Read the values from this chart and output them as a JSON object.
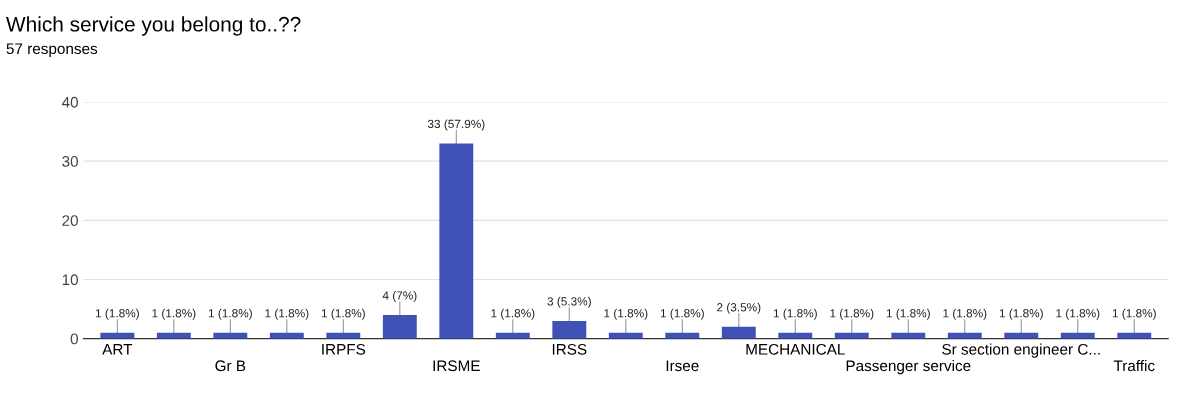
{
  "chart_data": {
    "type": "bar",
    "title": "Which service you belong to..??",
    "subtitle": "57 responses",
    "categories": [
      "ART",
      null,
      "Gr B",
      null,
      "IRPFS",
      null,
      "IRSME",
      null,
      "IRSS",
      null,
      "Irsee",
      null,
      "MECHANICAL",
      null,
      "Passenger service",
      null,
      "Sr section engineer C...",
      null,
      "Traffic"
    ],
    "values": [
      1,
      1,
      1,
      1,
      1,
      4,
      33,
      1,
      3,
      1,
      1,
      2,
      1,
      1,
      1,
      1,
      1,
      1,
      1
    ],
    "value_labels": [
      "1 (1.8%)",
      "1 (1.8%)",
      "1 (1.8%)",
      "1 (1.8%)",
      "1 (1.8%)",
      "4 (7%)",
      "33 (57.9%)",
      "1 (1.8%)",
      "3 (5.3%)",
      "1 (1.8%)",
      "1 (1.8%)",
      "2 (3.5%)",
      "1 (1.8%)",
      "1 (1.8%)",
      "1 (1.8%)",
      "1 (1.8%)",
      "1 (1.8%)",
      "1 (1.8%)",
      "1 (1.8%)"
    ],
    "color": "#3f51b5",
    "ylim": [
      0,
      40
    ],
    "yticks": [
      0,
      10,
      20,
      30,
      40
    ],
    "grid": "y"
  }
}
